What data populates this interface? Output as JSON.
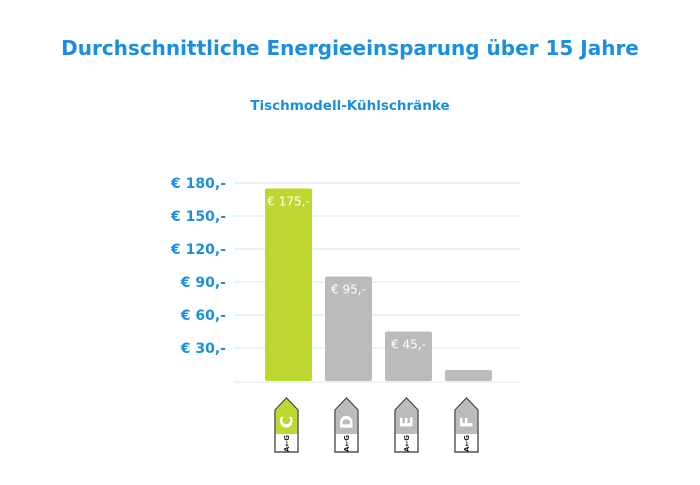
{
  "chart_data": {
    "type": "bar",
    "title": "Durchschnittliche Energieeinsparung über 15 Jahre",
    "subtitle": "Tischmodell-Kühlschränke",
    "xlabel": "",
    "ylabel": "",
    "ylim": [
      0,
      180
    ],
    "yticks": [
      30,
      60,
      90,
      120,
      150,
      180
    ],
    "ytick_labels": [
      "€ 30,-",
      "€ 60,-",
      "€ 90,-",
      "€ 120,-",
      "€ 150,-",
      "€ 180,-"
    ],
    "grid": true,
    "categories": [
      "C",
      "D",
      "E",
      "F"
    ],
    "values": [
      175,
      95,
      45,
      10
    ],
    "data_labels": [
      "€ 175,-",
      "€ 95,-",
      "€ 45,-",
      ""
    ],
    "label_scale_text": "A←G",
    "colors": {
      "highlight": "#bed62f",
      "other": "#bbbbbb",
      "text": "#1a8fe0",
      "grid": "#cfe8f8"
    }
  }
}
